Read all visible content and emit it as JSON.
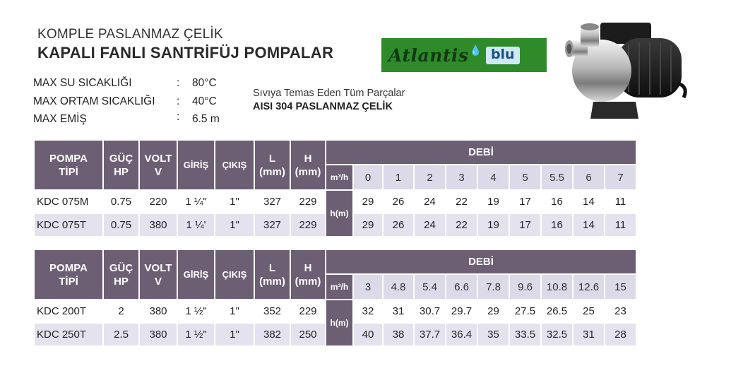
{
  "header": {
    "title_line1": "KOMPLE PASLANMAZ ÇELİK",
    "title_line2": "KAPALI FANLI SANTRİFÜJ POMPALAR"
  },
  "brand": {
    "name": "Atlantis",
    "suffix": "blu",
    "drop": "💧"
  },
  "specs": [
    {
      "label": "MAX SU SICAKLIĞI",
      "value": "80°C"
    },
    {
      "label": "MAX ORTAM SICAKLIĞI",
      "value": "40°C"
    },
    {
      "label": "MAX EMİŞ",
      "value": "6.5 m"
    }
  ],
  "spec_sep": ":",
  "note": {
    "line1": "Sıvıya Temas Eden Tüm Parçalar",
    "line2": "AISI 304 PASLANMAZ ÇELİK"
  },
  "headers": {
    "pompa": "POMPA",
    "tipi": "TİPİ",
    "guc": "GÜÇ",
    "hp": "HP",
    "volt": "VOLT",
    "v": "V",
    "giris": "GİRİŞ",
    "cikis": "ÇIKIŞ",
    "l": "L",
    "h": "H",
    "mm": "(mm)",
    "debi": "DEBİ",
    "flow_unit": "m³/h",
    "head_unit": "h(m)"
  },
  "tables": [
    {
      "flows": [
        "0",
        "1",
        "2",
        "3",
        "4",
        "5",
        "5.5",
        "6",
        "7"
      ],
      "rows": [
        {
          "type": "KDC 075M",
          "hp": "0.75",
          "volt": "220",
          "in": "1 ¼\"",
          "out": "1\"",
          "l": "327",
          "h": "229",
          "heads": [
            "29",
            "26",
            "24",
            "22",
            "19",
            "17",
            "16",
            "14",
            "11"
          ]
        },
        {
          "type": "KDC 075T",
          "hp": "0.75",
          "volt": "380",
          "in": "1 ¼'",
          "out": "1\"",
          "l": "327",
          "h": "229",
          "heads": [
            "29",
            "26",
            "24",
            "22",
            "19",
            "17",
            "16",
            "14",
            "11"
          ]
        }
      ]
    },
    {
      "flows": [
        "3",
        "4.8",
        "5.4",
        "6.6",
        "7.8",
        "9.6",
        "10.8",
        "12.6",
        "15"
      ],
      "rows": [
        {
          "type": "KDC 200T",
          "hp": "2",
          "volt": "380",
          "in": "1 ½\"",
          "out": "1\"",
          "l": "352",
          "h": "229",
          "heads": [
            "32",
            "31",
            "30.7",
            "29.7",
            "29",
            "27.5",
            "26.5",
            "25",
            "23"
          ]
        },
        {
          "type": "KDC 250T",
          "hp": "2.5",
          "volt": "380",
          "in": "1 ½\"",
          "out": "1\"",
          "l": "382",
          "h": "250",
          "heads": [
            "40",
            "38",
            "37.7",
            "36.4",
            "35",
            "33.5",
            "32.5",
            "31",
            "28"
          ]
        }
      ]
    }
  ]
}
